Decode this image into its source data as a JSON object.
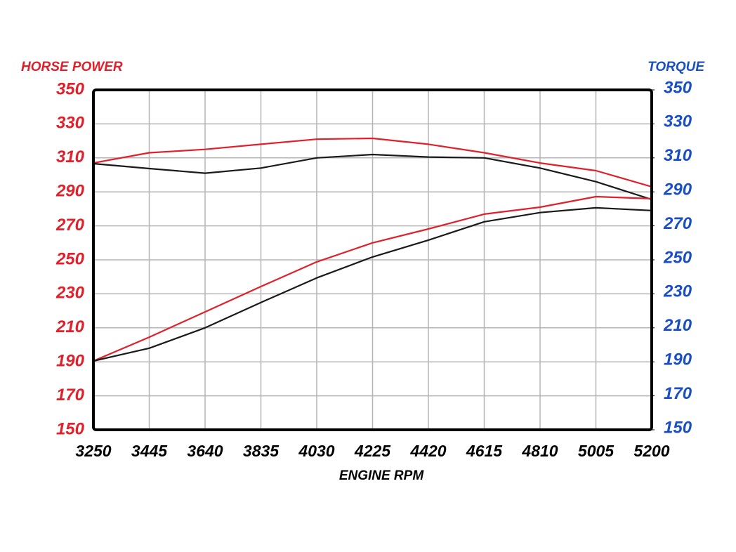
{
  "chart_data": {
    "type": "line",
    "y_label": "HORSE POWER",
    "y2_label": "TORQUE",
    "x_label": "ENGINE RPM",
    "x": [
      3250,
      3445,
      3640,
      3835,
      4030,
      4225,
      4420,
      4615,
      4810,
      5005,
      5200
    ],
    "xlim": [
      3250,
      5200
    ],
    "xticks": [
      3250,
      3445,
      3640,
      3835,
      4030,
      4225,
      4420,
      4615,
      4810,
      5005,
      5200
    ],
    "ylim": [
      150,
      350
    ],
    "yticks": [
      150,
      170,
      190,
      210,
      230,
      250,
      270,
      290,
      310,
      330,
      350
    ],
    "y2lim": [
      150,
      350
    ],
    "y2ticks": [
      150,
      170,
      190,
      210,
      230,
      250,
      270,
      290,
      310,
      330,
      350
    ],
    "grid": true,
    "series": [
      {
        "color": "#e0202a",
        "axis": "y2",
        "values": [
          307,
          313,
          315,
          318,
          321,
          321.5,
          318,
          313,
          307,
          302.5,
          293
        ]
      },
      {
        "color": "#1a1a1a",
        "axis": "y2",
        "values": [
          306.6,
          303.7,
          301,
          304,
          310,
          312,
          310.5,
          310,
          304,
          296,
          285.5
        ]
      },
      {
        "color": "#e0202a",
        "values": [
          190.5,
          204.5,
          219.4,
          234.3,
          248.8,
          260,
          268.2,
          276.9,
          281,
          287.2,
          286
        ]
      },
      {
        "color": "#1a1a1a",
        "values": [
          190.5,
          198,
          210,
          224.9,
          239.4,
          251.7,
          261.6,
          272.4,
          277.8,
          280.6,
          279
        ]
      }
    ]
  }
}
